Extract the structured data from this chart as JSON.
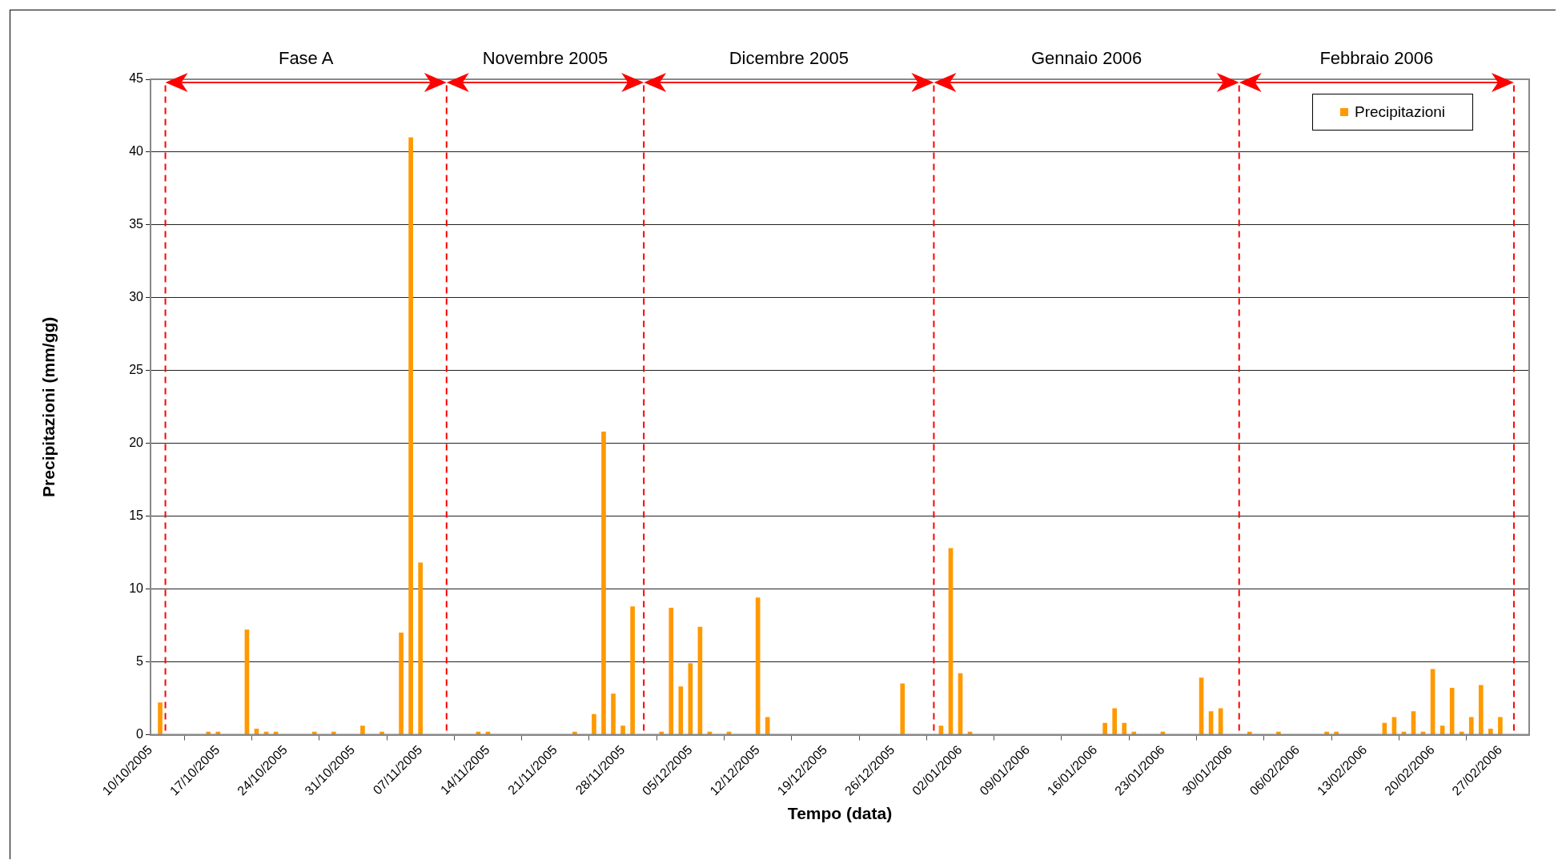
{
  "chart_data": {
    "type": "bar",
    "xlabel": "Tempo (data)",
    "ylabel": "Precipitazioni (mm/gg)",
    "x": [
      "2005-10-11",
      "2005-10-16",
      "2005-10-17",
      "2005-10-20",
      "2005-10-21",
      "2005-10-22",
      "2005-10-23",
      "2005-10-27",
      "2005-10-29",
      "2005-11-01",
      "2005-11-03",
      "2005-11-05",
      "2005-11-06",
      "2005-11-07",
      "2005-11-13",
      "2005-11-14",
      "2005-11-23",
      "2005-11-25",
      "2005-11-26",
      "2005-11-27",
      "2005-11-28",
      "2005-11-29",
      "2005-12-02",
      "2005-12-03",
      "2005-12-04",
      "2005-12-05",
      "2005-12-06",
      "2005-12-07",
      "2005-12-09",
      "2005-12-12",
      "2005-12-13",
      "2005-12-27",
      "2005-12-31",
      "2006-01-01",
      "2006-01-02",
      "2006-01-03",
      "2006-01-17",
      "2006-01-18",
      "2006-01-19",
      "2006-01-20",
      "2006-01-23",
      "2006-01-27",
      "2006-01-28",
      "2006-01-29",
      "2006-02-01",
      "2006-02-04",
      "2006-02-09",
      "2006-02-10",
      "2006-02-15",
      "2006-02-16",
      "2006-02-17",
      "2006-02-18",
      "2006-02-19",
      "2006-02-20",
      "2006-02-21",
      "2006-02-22",
      "2006-02-23",
      "2006-02-24",
      "2006-02-25",
      "2006-02-26",
      "2006-02-27"
    ],
    "series": [
      {
        "name": "Precipitazioni",
        "color": "#ff9900",
        "values": [
          2.2,
          0.2,
          0.2,
          7.2,
          0.4,
          0.2,
          0.2,
          0.2,
          0.2,
          0.6,
          0.2,
          7.0,
          41.0,
          11.8,
          0.2,
          0.2,
          0.2,
          1.4,
          20.8,
          2.8,
          0.6,
          8.8,
          0.2,
          8.7,
          3.3,
          4.9,
          7.4,
          0.2,
          0.2,
          9.4,
          1.2,
          3.5,
          0.6,
          12.8,
          4.2,
          0.2,
          0.8,
          1.8,
          0.8,
          0.2,
          0.2,
          3.9,
          1.6,
          1.8,
          0.2,
          0.2,
          0.2,
          0.2,
          0.8,
          1.2,
          0.2,
          1.6,
          0.2,
          4.5,
          0.6,
          3.2,
          0.2,
          1.2,
          3.4,
          0.4,
          1.2
        ]
      }
    ],
    "xlim": [
      "2005-10-10",
      "2006-03-02"
    ],
    "xticks": [
      {
        "value": "2005-10-10",
        "label": "10/10/2005"
      },
      {
        "value": "2005-10-17",
        "label": "17/10/2005"
      },
      {
        "value": "2005-10-24",
        "label": "24/10/2005"
      },
      {
        "value": "2005-10-31",
        "label": "31/10/2005"
      },
      {
        "value": "2005-11-07",
        "label": "07/11/2005"
      },
      {
        "value": "2005-11-14",
        "label": "14/11/2005"
      },
      {
        "value": "2005-11-21",
        "label": "21/11/2005"
      },
      {
        "value": "2005-11-28",
        "label": "28/11/2005"
      },
      {
        "value": "2005-12-05",
        "label": "05/12/2005"
      },
      {
        "value": "2005-12-12",
        "label": "12/12/2005"
      },
      {
        "value": "2005-12-19",
        "label": "19/12/2005"
      },
      {
        "value": "2005-12-26",
        "label": "26/12/2005"
      },
      {
        "value": "2006-01-02",
        "label": "02/01/2006"
      },
      {
        "value": "2006-01-09",
        "label": "09/01/2006"
      },
      {
        "value": "2006-01-16",
        "label": "16/01/2006"
      },
      {
        "value": "2006-01-23",
        "label": "23/01/2006"
      },
      {
        "value": "2006-01-30",
        "label": "30/01/2006"
      },
      {
        "value": "2006-02-06",
        "label": "06/02/2006"
      },
      {
        "value": "2006-02-13",
        "label": "13/02/2006"
      },
      {
        "value": "2006-02-20",
        "label": "20/02/2006"
      },
      {
        "value": "2006-02-27",
        "label": "27/02/2006"
      }
    ],
    "ylim": [
      0,
      45
    ],
    "yticks": [
      0,
      5,
      10,
      15,
      20,
      25,
      30,
      35,
      40,
      45
    ],
    "grid": "y",
    "legend": "top right",
    "ref_lines": [
      {
        "axis": "x",
        "value": "2005-10-11T13:00",
        "color": "#ff0000",
        "line_style": "dashed"
      },
      {
        "axis": "x",
        "value": "2005-11-09T17:00",
        "color": "#ff0000",
        "line_style": "dashed"
      },
      {
        "axis": "x",
        "value": "2005-11-30T04:00",
        "color": "#ff0000",
        "line_style": "dashed"
      },
      {
        "axis": "x",
        "value": "2005-12-30T06:00",
        "color": "#ff0000",
        "line_style": "dashed"
      },
      {
        "axis": "x",
        "value": "2006-01-30T22:00",
        "color": "#ff0000",
        "line_style": "dashed"
      },
      {
        "axis": "x",
        "value": "2006-02-28T10:00",
        "color": "#ff0000",
        "line_style": "dashed"
      }
    ],
    "annotations": [
      "Fase A",
      "Novembre 2005",
      "Dicembre 2005",
      "Gennaio 2006",
      "Febbraio 2006"
    ]
  }
}
